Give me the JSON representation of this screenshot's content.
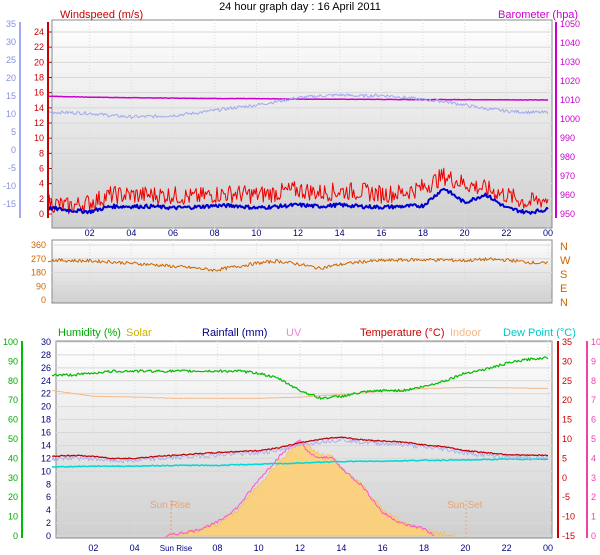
{
  "title": "24 hour graph day : 16 April 2011",
  "time_ticks": [
    "02",
    "04",
    "06",
    "08",
    "10",
    "12",
    "14",
    "16",
    "18",
    "20",
    "22",
    "00"
  ],
  "time_ticks_bottom": [
    "02",
    "04",
    "Sun Rise",
    "08",
    "10",
    "12",
    "14",
    "16",
    "18",
    "20",
    "22",
    "00"
  ],
  "chart_data": [
    {
      "type": "line",
      "title": "24 hour graph day : 16 April 2011",
      "x_unit": "hours",
      "xlim": [
        0,
        24
      ],
      "left_axis": {
        "label": "Windspeed (m/s)",
        "ticks": [
          "24",
          "22",
          "20",
          "18",
          "16",
          "14",
          "12",
          "10",
          "8",
          "6",
          "4",
          "2",
          "0"
        ],
        "ylim": [
          0,
          25
        ]
      },
      "outer_left_axis": {
        "ticks": [
          "35",
          "30",
          "25",
          "20",
          "15",
          "10",
          "5",
          "0",
          "-5",
          "-10",
          "-15"
        ],
        "ylim": [
          -17,
          35
        ]
      },
      "right_axis": {
        "label": "Barometer (hpa)",
        "ticks": [
          "1050",
          "1040",
          "1030",
          "1020",
          "1010",
          "1000",
          "990",
          "980",
          "970",
          "960",
          "950"
        ],
        "ylim": [
          947,
          1052
        ]
      },
      "series": [
        {
          "name": "Barometer (hpa)",
          "axis": "right",
          "color": "#cc00cc",
          "x": [
            0,
            2,
            4,
            6,
            8,
            10,
            12,
            14,
            16,
            18,
            20,
            22,
            24
          ],
          "values": [
            1012,
            1011.5,
            1011.2,
            1011,
            1010.8,
            1010.7,
            1010.5,
            1010.4,
            1010.3,
            1010.2,
            1010.2,
            1010.1,
            1010
          ]
        },
        {
          "color": "#a0a8ee",
          "axis": "outer_left",
          "x": [
            0,
            1,
            2,
            3,
            4,
            5,
            6,
            7,
            8,
            9,
            10,
            11,
            12,
            13,
            14,
            15,
            16,
            17,
            18,
            19,
            20,
            21,
            22,
            23,
            24
          ],
          "values": [
            10.5,
            10.4,
            10.2,
            9.6,
            9.2,
            9.3,
            9.6,
            10.2,
            11,
            11.8,
            12.5,
            13.5,
            14.5,
            15,
            15.3,
            15,
            15.2,
            14.7,
            14,
            13.5,
            12.5,
            11.5,
            10.8,
            10.5,
            10.4
          ]
        },
        {
          "color": "#ee0000",
          "axis": "left",
          "x": [
            0,
            1,
            2,
            3,
            4,
            5,
            6,
            7,
            8,
            9,
            10,
            11,
            12,
            13,
            14,
            15,
            16,
            17,
            18,
            19,
            20,
            21,
            22,
            23,
            24
          ],
          "values": [
            1.5,
            1,
            1.5,
            2.5,
            2.5,
            2.5,
            2.5,
            2.2,
            2.6,
            2.7,
            2.5,
            2.8,
            3.2,
            2.8,
            3,
            3,
            2.6,
            2.8,
            3.5,
            5,
            4,
            3.3,
            2.5,
            1.5,
            2
          ]
        },
        {
          "color": "#0000cc",
          "axis": "left",
          "x": [
            0,
            1,
            2,
            3,
            4,
            5,
            6,
            7,
            8,
            9,
            10,
            11,
            12,
            13,
            14,
            15,
            16,
            17,
            18,
            19,
            20,
            21,
            22,
            23,
            24
          ],
          "values": [
            0.8,
            0.5,
            0.3,
            1,
            1,
            1,
            0.8,
            0.9,
            1.1,
            1.1,
            0.8,
            1,
            1.2,
            1,
            1.2,
            1,
            0.9,
            1,
            1.1,
            3.4,
            1.5,
            2.6,
            0.8,
            0.2,
            0.6
          ]
        }
      ]
    },
    {
      "type": "line",
      "x_unit": "hours",
      "xlim": [
        0,
        24
      ],
      "left_axis": {
        "ticks": [
          "360",
          "270",
          "180",
          "90",
          "0"
        ],
        "ylim": [
          0,
          370
        ]
      },
      "right_axis": {
        "ticks": [
          "N",
          "W",
          "S",
          "E",
          "N"
        ]
      },
      "series": [
        {
          "color": "#cc6600",
          "x": [
            0,
            1,
            2,
            3,
            4,
            5,
            6,
            7,
            8,
            9,
            10,
            11,
            12,
            13,
            14,
            15,
            16,
            17,
            18,
            19,
            20,
            21,
            22,
            23,
            24
          ],
          "values": [
            262,
            258,
            256,
            250,
            240,
            232,
            220,
            210,
            195,
            218,
            240,
            255,
            236,
            208,
            232,
            250,
            258,
            262,
            264,
            262,
            258,
            266,
            262,
            248,
            238
          ]
        }
      ]
    },
    {
      "type": "line",
      "xlim": [
        0,
        24
      ],
      "x_unit": "hours",
      "legend": [
        "Humidity (%)",
        "Solar",
        "Rainfall (mm)",
        "UV",
        "Temperature (°C)",
        "Indoor",
        "Dew Point (°C)"
      ],
      "annotations": [
        "Sun Rise",
        "Sun Set"
      ],
      "axes": {
        "humidity": {
          "ticks": [
            "100",
            "90",
            "80",
            "70",
            "60",
            "50",
            "40",
            "30",
            "20",
            "10",
            "0"
          ],
          "ylim": [
            0,
            100
          ],
          "color": "#00aa00"
        },
        "rainfall": {
          "ticks": [
            "30",
            "28",
            "26",
            "24",
            "22",
            "20",
            "18",
            "16",
            "14",
            "12",
            "10",
            "8",
            "6",
            "4",
            "2",
            "0"
          ],
          "ylim": [
            0,
            30
          ]
        },
        "temperature": {
          "ticks": [
            "35",
            "30",
            "25",
            "20",
            "15",
            "10",
            "5",
            "0",
            "-5",
            "-10",
            "-15"
          ],
          "ylim": [
            -15,
            35
          ],
          "color": "#cc0000"
        },
        "uv": {
          "ticks": [
            "10",
            "9",
            "8",
            "7",
            "6",
            "5",
            "4",
            "3",
            "2",
            "1",
            "0"
          ],
          "ylim": [
            0,
            10
          ],
          "color": "#ee44aa"
        }
      },
      "series": [
        {
          "name": "Humidity (%)",
          "axis": "humidity",
          "color": "#00bb00",
          "x": [
            0,
            1,
            2,
            3,
            4,
            5,
            6,
            7,
            8,
            9,
            10,
            11,
            12,
            13,
            14,
            15,
            16,
            17,
            18,
            19,
            20,
            21,
            22,
            23,
            24
          ],
          "values": [
            83,
            83,
            84,
            85,
            85,
            85,
            85,
            85,
            85,
            85,
            84,
            81,
            75,
            71,
            72,
            74,
            75,
            75,
            77,
            80,
            84,
            86,
            89,
            91,
            92
          ]
        },
        {
          "name": "Indoor",
          "axis": "temperature",
          "color": "#f3b98a",
          "x": [
            0,
            2,
            4,
            6,
            8,
            10,
            12,
            14,
            16,
            18,
            20,
            22,
            24
          ],
          "values": [
            22.5,
            21,
            20.8,
            20.5,
            20.5,
            20.5,
            20.8,
            21.5,
            22.3,
            23,
            23.3,
            23.2,
            23
          ]
        },
        {
          "name": "Temperature (°C)",
          "axis": "temperature",
          "color": "#bb0000",
          "x": [
            0,
            1,
            2,
            3,
            4,
            5,
            6,
            7,
            8,
            9,
            10,
            11,
            12,
            13,
            14,
            15,
            16,
            17,
            18,
            19,
            20,
            21,
            22,
            23,
            24
          ],
          "values": [
            5.5,
            5.8,
            5.5,
            5,
            5,
            5.5,
            5.8,
            6.2,
            6.5,
            6.8,
            7,
            7.8,
            9,
            10,
            10.5,
            9.8,
            9.5,
            9.2,
            8.5,
            8,
            7,
            6.5,
            6,
            5.8,
            5.8
          ]
        },
        {
          "name": "Dew Point (°C)",
          "axis": "temperature",
          "color": "#00d8d8",
          "x": [
            0,
            2,
            4,
            6,
            8,
            10,
            12,
            14,
            16,
            18,
            20,
            22,
            24
          ],
          "values": [
            2.8,
            3,
            3,
            3.2,
            3.2,
            3.5,
            3.8,
            4.2,
            4.3,
            4.5,
            4.6,
            4.8,
            4.8
          ]
        },
        {
          "name": "Solar",
          "axis": "rainfall",
          "color": "#ffd070",
          "fill": true,
          "x": [
            5.5,
            6,
            7,
            8,
            9,
            10,
            11,
            11.5,
            12,
            12.5,
            13,
            13.5,
            14,
            15,
            16,
            17,
            17.5,
            18,
            18.5,
            19,
            19.5
          ],
          "values": [
            0,
            0.3,
            0.8,
            1.8,
            4,
            8,
            11.5,
            13,
            14.8,
            13.5,
            12.5,
            12.5,
            10.5,
            8,
            4,
            2,
            1.5,
            1,
            0.5,
            0.2,
            0
          ]
        },
        {
          "name": "UV",
          "axis": "uv",
          "color": "#ff55cc",
          "x": [
            5.5,
            6,
            7,
            8,
            9,
            10,
            11,
            11.5,
            12,
            12.5,
            13,
            13.5,
            14,
            15,
            16,
            17,
            17.5,
            18,
            18.5
          ],
          "values": [
            0,
            0.1,
            0.3,
            0.7,
            1.5,
            2.9,
            4.1,
            4.6,
            4.9,
            4.2,
            4,
            4.1,
            3.5,
            2.6,
            1.2,
            0.6,
            0.5,
            0.4,
            0
          ]
        }
      ]
    }
  ]
}
